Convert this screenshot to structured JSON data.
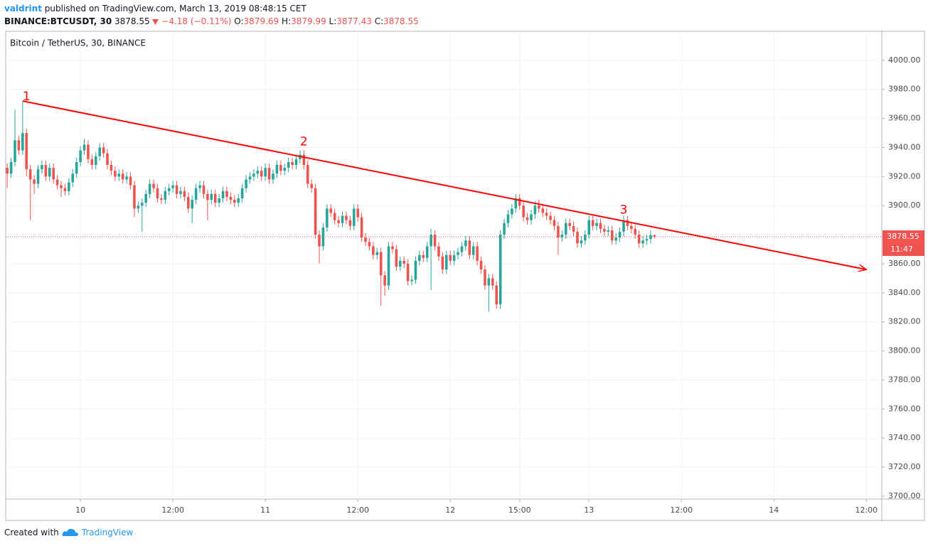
{
  "header": {
    "publisher": "valdrint",
    "published": "published on TradingView.com, March 13, 2019 08:48:15 CET",
    "symbol": "BINANCE:BTCUSDT, 30",
    "change": "−4.18 (−0.11%)",
    "ohlc_labels": [
      "O:",
      "H:",
      "L:",
      "C:"
    ]
  },
  "footer": {
    "created": "Created with",
    "brand": "TradingView"
  },
  "chart_data": {
    "type": "candlestick",
    "title": "Bitcoin / TetherUS, 30, BINANCE",
    "up_color": "#26a69a",
    "down_color": "#ef5350",
    "grid": true,
    "xlim": [
      -0.4,
      227
    ],
    "ylim": [
      3698,
      4020
    ],
    "xticks": [
      {
        "value": 19,
        "label": "10"
      },
      {
        "value": 43,
        "label": "12:00"
      },
      {
        "value": 67,
        "label": "11"
      },
      {
        "value": 91,
        "label": "12:00"
      },
      {
        "value": 115,
        "label": "12"
      },
      {
        "value": 133,
        "label": "15:00"
      },
      {
        "value": 151,
        "label": "13"
      },
      {
        "value": 175,
        "label": "12:00"
      },
      {
        "value": 199,
        "label": "14"
      },
      {
        "value": 223,
        "label": "12:00"
      }
    ],
    "yticks": [
      {
        "value": 4000,
        "label": "4000.00"
      },
      {
        "value": 3980,
        "label": "3980.00"
      },
      {
        "value": 3960,
        "label": "3960.00"
      },
      {
        "value": 3940,
        "label": "3940.00"
      },
      {
        "value": 3920,
        "label": "3920.00"
      },
      {
        "value": 3900,
        "label": "3900.00"
      },
      {
        "value": 3880,
        "label": "3880.00"
      },
      {
        "value": 3860,
        "label": "3860.00"
      },
      {
        "value": 3840,
        "label": "3840.00"
      },
      {
        "value": 3820,
        "label": "3820.00"
      },
      {
        "value": 3800,
        "label": "3800.00"
      },
      {
        "value": 3780,
        "label": "3780.00"
      },
      {
        "value": 3760,
        "label": "3760.00"
      },
      {
        "value": 3740,
        "label": "3740.00"
      },
      {
        "value": 3720,
        "label": "3720.00"
      },
      {
        "value": 3700,
        "label": "3700.00"
      }
    ],
    "open": [
      3926,
      3922,
      3930,
      3945,
      3938,
      3950,
      3925,
      3918,
      3915,
      3925,
      3928,
      3920,
      3926,
      3918,
      3914,
      3912,
      3910,
      3916,
      3922,
      3930,
      3938,
      3942,
      3932,
      3928,
      3934,
      3940,
      3936,
      3928,
      3924,
      3920,
      3922,
      3918,
      3920,
      3914,
      3898,
      3900,
      3902,
      3908,
      3915,
      3912,
      3905,
      3904,
      3910,
      3912,
      3914,
      3908,
      3910,
      3906,
      3898,
      3904,
      3912,
      3914,
      3908,
      3904,
      3908,
      3902,
      3905,
      3910,
      3906,
      3904,
      3902,
      3905,
      3912,
      3918,
      3920,
      3922,
      3924,
      3920,
      3926,
      3918,
      3922,
      3928,
      3924,
      3926,
      3930,
      3928,
      3932,
      3935,
      3928,
      3915,
      3912,
      3880,
      3872,
      3885,
      3898,
      3895,
      3890,
      3888,
      3893,
      3890,
      3886,
      3898,
      3892,
      3878,
      3875,
      3872,
      3866,
      3868,
      3852,
      3845,
      3872,
      3870,
      3858,
      3862,
      3860,
      3848,
      3849,
      3862,
      3866,
      3864,
      3872,
      3880,
      3872,
      3865,
      3856,
      3866,
      3862,
      3866,
      3868,
      3872,
      3876,
      3866,
      3872,
      3862,
      3856,
      3845,
      3850,
      3845,
      3832,
      3880,
      3888,
      3894,
      3898,
      3905,
      3900,
      3892,
      3890,
      3894,
      3900,
      3898,
      3895,
      3893,
      3890,
      3886,
      3878,
      3880,
      3888,
      3886,
      3882,
      3874,
      3876,
      3880,
      3890,
      3886,
      3888,
      3884,
      3882,
      3883,
      3876,
      3878,
      3882,
      3890,
      3886,
      3884,
      3880,
      3874,
      3876,
      3877,
      3879.69
    ],
    "high": [
      3929,
      3933,
      3966,
      3948,
      3972,
      3953,
      3928,
      3921,
      3928,
      3931,
      3931,
      3929,
      3929,
      3921,
      3917,
      3915,
      3919,
      3925,
      3933,
      3941,
      3946,
      3945,
      3935,
      3937,
      3943,
      3943,
      3939,
      3931,
      3927,
      3925,
      3925,
      3923,
      3923,
      3917,
      3903,
      3905,
      3911,
      3918,
      3918,
      3915,
      3908,
      3913,
      3915,
      3917,
      3917,
      3913,
      3913,
      3909,
      3907,
      3915,
      3917,
      3917,
      3911,
      3911,
      3911,
      3908,
      3913,
      3913,
      3909,
      3907,
      3908,
      3915,
      3921,
      3923,
      3925,
      3927,
      3927,
      3929,
      3929,
      3925,
      3931,
      3931,
      3929,
      3933,
      3933,
      3935,
      3938,
      3938,
      3931,
      3918,
      3915,
      3883,
      3888,
      3901,
      3901,
      3898,
      3893,
      3896,
      3896,
      3893,
      3901,
      3901,
      3895,
      3881,
      3878,
      3875,
      3871,
      3871,
      3855,
      3875,
      3875,
      3873,
      3865,
      3865,
      3863,
      3852,
      3865,
      3869,
      3869,
      3875,
      3884,
      3883,
      3875,
      3868,
      3869,
      3869,
      3869,
      3871,
      3875,
      3879,
      3879,
      3875,
      3875,
      3865,
      3859,
      3853,
      3853,
      3848,
      3883,
      3891,
      3897,
      3901,
      3908,
      3908,
      3903,
      3895,
      3897,
      3903,
      3904,
      3901,
      3898,
      3896,
      3893,
      3889,
      3883,
      3891,
      3891,
      3889,
      3885,
      3879,
      3883,
      3893,
      3893,
      3891,
      3891,
      3887,
      3886,
      3886,
      3881,
      3885,
      3893,
      3893,
      3889,
      3887,
      3883,
      3879,
      3880,
      3883,
      3879.99
    ],
    "low": [
      3912,
      3919,
      3927,
      3935,
      3935,
      3920,
      3890,
      3908,
      3912,
      3922,
      3917,
      3917,
      3915,
      3911,
      3906,
      3907,
      3907,
      3913,
      3919,
      3927,
      3935,
      3929,
      3925,
      3925,
      3931,
      3933,
      3925,
      3921,
      3917,
      3917,
      3915,
      3915,
      3911,
      3892,
      3895,
      3882,
      3899,
      3905,
      3909,
      3902,
      3901,
      3901,
      3907,
      3909,
      3905,
      3905,
      3903,
      3895,
      3888,
      3901,
      3909,
      3905,
      3890,
      3901,
      3899,
      3899,
      3902,
      3903,
      3901,
      3899,
      3899,
      3902,
      3909,
      3915,
      3917,
      3919,
      3917,
      3917,
      3915,
      3915,
      3919,
      3921,
      3921,
      3923,
      3925,
      3925,
      3929,
      3925,
      3912,
      3909,
      3877,
      3860,
      3869,
      3882,
      3892,
      3887,
      3885,
      3885,
      3887,
      3883,
      3883,
      3889,
      3875,
      3872,
      3869,
      3863,
      3863,
      3831,
      3838,
      3842,
      3867,
      3855,
      3855,
      3857,
      3845,
      3845,
      3846,
      3859,
      3861,
      3861,
      3842,
      3869,
      3862,
      3853,
      3853,
      3859,
      3859,
      3863,
      3865,
      3869,
      3863,
      3863,
      3859,
      3853,
      3842,
      3827,
      3842,
      3829,
      3829,
      3877,
      3885,
      3891,
      3895,
      3897,
      3889,
      3887,
      3887,
      3891,
      3895,
      3892,
      3890,
      3887,
      3883,
      3866,
      3875,
      3877,
      3883,
      3879,
      3871,
      3871,
      3873,
      3877,
      3883,
      3883,
      3881,
      3879,
      3879,
      3873,
      3873,
      3875,
      3879,
      3883,
      3881,
      3877,
      3871,
      3871,
      3873,
      3874,
      3877.43
    ],
    "close": [
      3922,
      3930,
      3945,
      3938,
      3950,
      3925,
      3918,
      3915,
      3925,
      3928,
      3920,
      3926,
      3918,
      3914,
      3912,
      3910,
      3916,
      3922,
      3930,
      3938,
      3942,
      3932,
      3928,
      3934,
      3940,
      3936,
      3928,
      3924,
      3920,
      3922,
      3918,
      3920,
      3914,
      3898,
      3900,
      3902,
      3908,
      3915,
      3912,
      3905,
      3904,
      3910,
      3912,
      3914,
      3908,
      3910,
      3906,
      3898,
      3904,
      3912,
      3914,
      3908,
      3904,
      3908,
      3902,
      3905,
      3910,
      3906,
      3904,
      3902,
      3905,
      3912,
      3918,
      3920,
      3922,
      3924,
      3920,
      3926,
      3918,
      3922,
      3928,
      3924,
      3926,
      3930,
      3928,
      3932,
      3935,
      3928,
      3915,
      3912,
      3880,
      3872,
      3885,
      3898,
      3895,
      3890,
      3888,
      3893,
      3890,
      3886,
      3898,
      3892,
      3878,
      3875,
      3872,
      3866,
      3868,
      3852,
      3845,
      3872,
      3870,
      3858,
      3862,
      3860,
      3848,
      3849,
      3862,
      3866,
      3864,
      3872,
      3880,
      3872,
      3865,
      3856,
      3866,
      3862,
      3866,
      3868,
      3872,
      3876,
      3866,
      3872,
      3862,
      3856,
      3845,
      3850,
      3845,
      3832,
      3880,
      3888,
      3894,
      3898,
      3905,
      3900,
      3892,
      3890,
      3894,
      3900,
      3898,
      3895,
      3893,
      3890,
      3886,
      3878,
      3880,
      3888,
      3886,
      3882,
      3874,
      3876,
      3880,
      3890,
      3886,
      3888,
      3884,
      3882,
      3883,
      3876,
      3878,
      3882,
      3890,
      3886,
      3884,
      3880,
      3874,
      3876,
      3877,
      3879.69,
      3878.55
    ],
    "countdown": "11:47",
    "trendline": {
      "color": "#f00",
      "x": [
        4,
        223
      ],
      "y": [
        3972,
        3856
      ]
    },
    "annotations": [
      {
        "text": "1",
        "x": 5,
        "y": 3975
      },
      {
        "text": "2",
        "x": 77,
        "y": 3944
      },
      {
        "text": "3",
        "x": 160,
        "y": 3897
      }
    ]
  }
}
